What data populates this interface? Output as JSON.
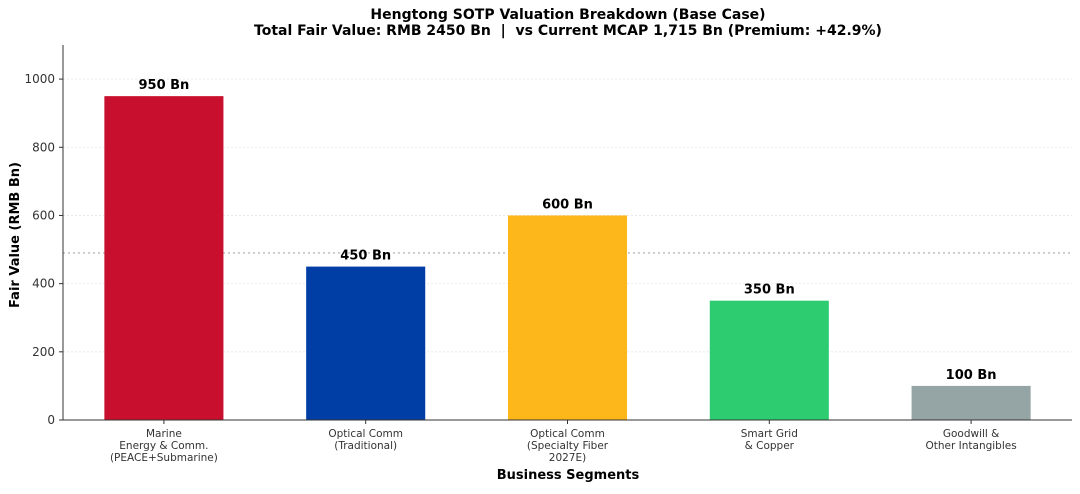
{
  "chart_data": {
    "type": "bar",
    "title": "Hengtong SOTP Valuation Breakdown (Base Case)",
    "subtitle": "Total Fair Value: RMB 2450 Bn  |  vs Current MCAP 1,715 Bn (Premium: +42.9%)",
    "xlabel": "Business Segments",
    "ylabel": "Fair Value (RMB Bn)",
    "ylim": [
      0,
      1100
    ],
    "yticks": [
      0,
      200,
      400,
      600,
      800,
      1000
    ],
    "grid": true,
    "reference_line": 490,
    "categories": [
      [
        "Marine",
        "Energy & Comm.",
        "(PEACE+Submarine)"
      ],
      [
        "Optical Comm",
        "(Traditional)"
      ],
      [
        "Optical Comm",
        "(Specialty Fiber",
        "2027E)"
      ],
      [
        "Smart Grid",
        "& Copper"
      ],
      [
        "Goodwill &",
        "Other Intangibles"
      ]
    ],
    "values": [
      950,
      450,
      600,
      350,
      100
    ],
    "data_labels": [
      "950 Bn",
      "450 Bn",
      "600 Bn",
      "350 Bn",
      "100 Bn"
    ],
    "colors": [
      "#c8102e",
      "#003da5",
      "#fdb71a",
      "#2ecc71",
      "#95a5a6"
    ]
  }
}
